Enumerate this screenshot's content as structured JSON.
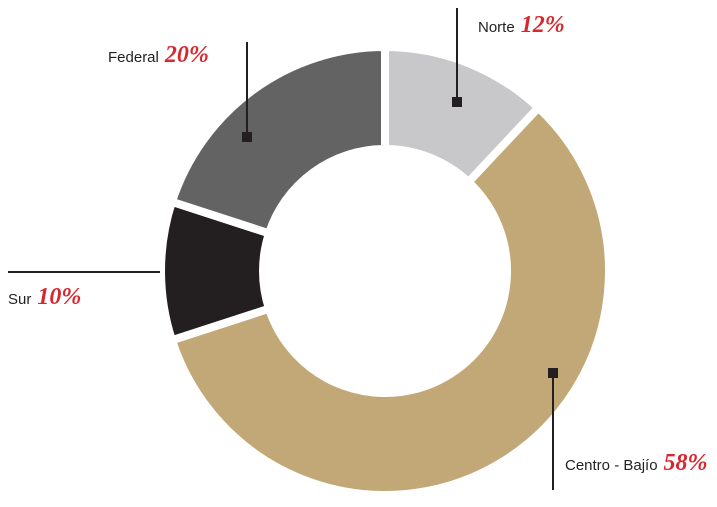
{
  "chart_data": {
    "type": "donut",
    "categories": [
      "Norte",
      "Centro - Bajío",
      "Sur",
      "Federal"
    ],
    "values": [
      12,
      58,
      10,
      20
    ],
    "value_labels": [
      "12%",
      "58%",
      "10%",
      "20%"
    ],
    "colors": [
      "#c8c8ca",
      "#c2a877",
      "#231f20",
      "#636363"
    ]
  }
}
